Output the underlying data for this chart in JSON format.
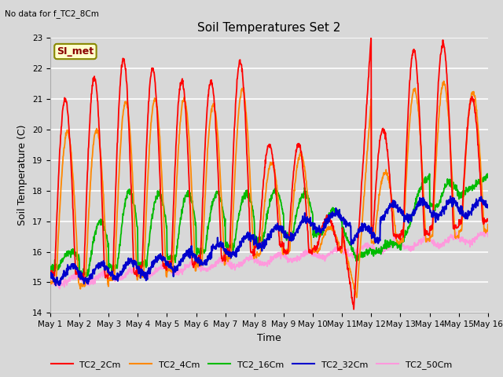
{
  "title": "Soil Temperatures Set 2",
  "suptitle_note": "No data for f_TC2_8Cm",
  "xlabel": "Time",
  "ylabel": "Soil Temperature (C)",
  "ylim": [
    14.0,
    23.0
  ],
  "yticks": [
    14.0,
    15.0,
    16.0,
    17.0,
    18.0,
    19.0,
    20.0,
    21.0,
    22.0,
    23.0
  ],
  "xtick_labels": [
    "May 1",
    "May 2",
    "May 3",
    "May 4",
    "May 5",
    "May 6",
    "May 7",
    "May 8",
    "May 9",
    "May 10",
    "May 11",
    "May 12",
    "May 13",
    "May 14",
    "May 15",
    "May 16"
  ],
  "legend_label": "SI_met",
  "series_colors": {
    "TC2_2Cm": "#ff0000",
    "TC2_4Cm": "#ff8800",
    "TC2_16Cm": "#00bb00",
    "TC2_32Cm": "#0000cc",
    "TC2_50Cm": "#ff99dd"
  },
  "bg_color": "#d8d8d8",
  "fig_color": "#d8d8d8"
}
